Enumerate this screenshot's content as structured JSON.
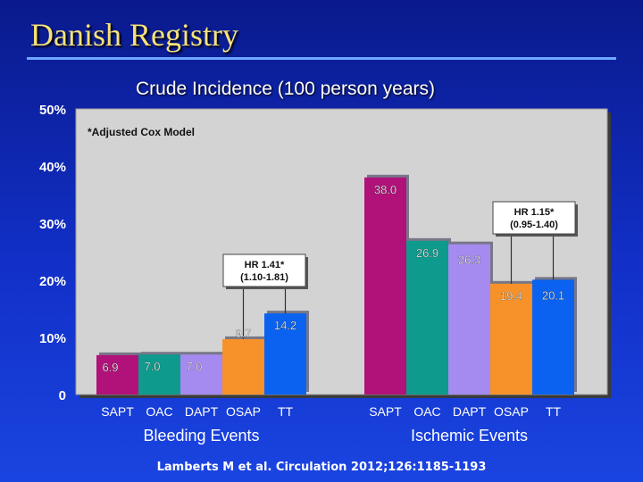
{
  "slide": {
    "title": "Danish Registry",
    "footer": "Lamberts M et al. Circulation 2012;126:1185-1193"
  },
  "colors": {
    "SAPT": "#b0127a",
    "OAC": "#0e9a8c",
    "DAPT": "#a58af0",
    "OSAP": "#f7922a",
    "TT": "#0b62f0",
    "plot_bg": "#d3d3d3"
  },
  "chart_data": {
    "type": "bar",
    "title": "Crude Incidence (100 person years)",
    "note": "*Adjusted Cox Model",
    "ylim": [
      0,
      50
    ],
    "yticks": [
      {
        "value": 0,
        "label": "0"
      },
      {
        "value": 10,
        "label": "10%"
      },
      {
        "value": 20,
        "label": "20%"
      },
      {
        "value": 30,
        "label": "30%"
      },
      {
        "value": 40,
        "label": "40%"
      },
      {
        "value": 50,
        "label": "50%"
      }
    ],
    "categories": [
      "SAPT",
      "OAC",
      "DAPT",
      "OSAP",
      "TT"
    ],
    "groups": [
      {
        "name": "Bleeding Events",
        "labels": [
          "6.9",
          "7.0",
          "7.0",
          "9.7",
          "14.2"
        ],
        "values": [
          6.9,
          7.0,
          7.0,
          9.7,
          14.2
        ],
        "annotation": {
          "line1": "HR 1.41*",
          "line2": "(1.10-1.81)",
          "from": "OSAP",
          "to": "TT"
        }
      },
      {
        "name": "Ischemic Events",
        "labels": [
          "38.0",
          "26.9",
          "26.3",
          "19.4",
          "20.1"
        ],
        "values": [
          38.0,
          26.9,
          26.3,
          19.4,
          20.1
        ],
        "annotation": {
          "line1": "HR 1.15*",
          "line2": "(0.95-1.40)",
          "from": "OSAP",
          "to": "TT"
        }
      }
    ]
  }
}
